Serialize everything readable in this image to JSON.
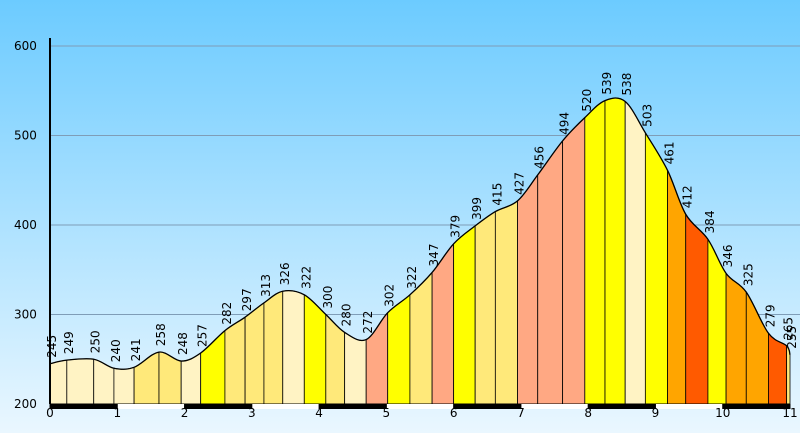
{
  "chart_data": {
    "type": "area",
    "title": "",
    "xlabel": "",
    "ylabel": "",
    "xlim": [
      0,
      11
    ],
    "ylim": [
      200,
      600
    ],
    "y_ticks": [
      200,
      300,
      400,
      500,
      600
    ],
    "x_ticks": [
      0,
      1,
      2,
      3,
      4,
      5,
      6,
      7,
      8,
      9,
      10,
      11
    ],
    "grid": true,
    "legend": "none",
    "colors": {
      "background_top": "#6ccbff",
      "background_bottom": "#eaf7ff",
      "grid": "#7f9db7",
      "outline": "#000000"
    },
    "points": [
      {
        "x": 0.0,
        "y": 245
      },
      {
        "x": 0.25,
        "y": 249
      },
      {
        "x": 0.65,
        "y": 250
      },
      {
        "x": 0.95,
        "y": 240
      },
      {
        "x": 1.25,
        "y": 241
      },
      {
        "x": 1.62,
        "y": 258
      },
      {
        "x": 1.95,
        "y": 248
      },
      {
        "x": 2.24,
        "y": 257
      },
      {
        "x": 2.6,
        "y": 282
      },
      {
        "x": 2.9,
        "y": 297
      },
      {
        "x": 3.18,
        "y": 313
      },
      {
        "x": 3.46,
        "y": 326
      },
      {
        "x": 3.78,
        "y": 322
      },
      {
        "x": 4.1,
        "y": 300
      },
      {
        "x": 4.38,
        "y": 280
      },
      {
        "x": 4.7,
        "y": 272
      },
      {
        "x": 5.02,
        "y": 302
      },
      {
        "x": 5.35,
        "y": 322
      },
      {
        "x": 5.68,
        "y": 347
      },
      {
        "x": 6.0,
        "y": 379
      },
      {
        "x": 6.32,
        "y": 399
      },
      {
        "x": 6.62,
        "y": 415
      },
      {
        "x": 6.95,
        "y": 427
      },
      {
        "x": 7.25,
        "y": 456
      },
      {
        "x": 7.62,
        "y": 494
      },
      {
        "x": 7.95,
        "y": 520
      },
      {
        "x": 8.25,
        "y": 539
      },
      {
        "x": 8.55,
        "y": 538
      },
      {
        "x": 8.85,
        "y": 503
      },
      {
        "x": 9.18,
        "y": 461
      },
      {
        "x": 9.45,
        "y": 412
      },
      {
        "x": 9.78,
        "y": 384
      },
      {
        "x": 10.05,
        "y": 346
      },
      {
        "x": 10.35,
        "y": 325
      },
      {
        "x": 10.68,
        "y": 279
      },
      {
        "x": 10.95,
        "y": 265
      },
      {
        "x": 11.0,
        "y": 255
      }
    ],
    "segment_colors": [
      "#fff3c4",
      "#fff3c4",
      "#fff3c4",
      "#fff3c4",
      "#ffe97a",
      "#ffe97a",
      "#fff3c4",
      "#ffff00",
      "#ffe97a",
      "#ffe97a",
      "#ffe97a",
      "#fff3c4",
      "#ffff00",
      "#ffe97a",
      "#fff3c4",
      "#ffa883",
      "#ffff00",
      "#ffe97a",
      "#ffa883",
      "#ffff00",
      "#ffe97a",
      "#ffe97a",
      "#ffa883",
      "#ffa883",
      "#ffa883",
      "#ffff00",
      "#ffff00",
      "#fff3c4",
      "#ffff00",
      "#ffa500",
      "#ff5a00",
      "#ffff00",
      "#ffa500",
      "#ffa500",
      "#ff5a00",
      "#ffe97a"
    ],
    "scale_bar": [
      {
        "from": 0,
        "to": 1,
        "color": "#000000"
      },
      {
        "from": 1,
        "to": 2,
        "color": "#ffffff"
      },
      {
        "from": 2,
        "to": 3,
        "color": "#000000"
      },
      {
        "from": 3,
        "to": 4,
        "color": "#ffffff"
      },
      {
        "from": 4,
        "to": 5,
        "color": "#000000"
      },
      {
        "from": 5,
        "to": 6,
        "color": "#ffffff"
      },
      {
        "from": 6,
        "to": 7,
        "color": "#000000"
      },
      {
        "from": 7,
        "to": 8,
        "color": "#ffffff"
      },
      {
        "from": 8,
        "to": 9,
        "color": "#000000"
      },
      {
        "from": 9,
        "to": 10,
        "color": "#ffffff"
      },
      {
        "from": 10,
        "to": 11,
        "color": "#000000"
      }
    ]
  }
}
